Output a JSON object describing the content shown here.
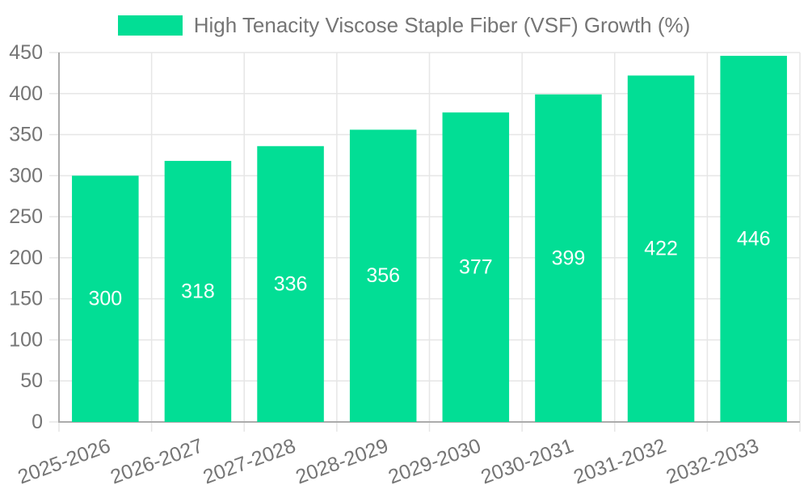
{
  "chart_data": {
    "type": "bar",
    "legend_label": "High Tenacity Viscose Staple Fiber (VSF) Growth (%)",
    "categories": [
      "2025-2026",
      "2026-2027",
      "2027-2028",
      "2028-2029",
      "2029-2030",
      "2030-2031",
      "2031-2032",
      "2032-2033"
    ],
    "values": [
      300,
      318,
      336,
      356,
      377,
      399,
      422,
      446
    ],
    "value_labels": [
      "300",
      "318",
      "336",
      "356",
      "377",
      "399",
      "422",
      "446"
    ],
    "ylabel": "",
    "xlabel": "",
    "ylim": [
      0,
      450
    ],
    "ytick_step": 50,
    "grid": true,
    "legend_position": "top",
    "x_label_rotation": -20,
    "colors": {
      "bar": "#02DE95",
      "grid": "#E6E6E6",
      "axis": "#ABABAB",
      "tick_text": "#757575",
      "value_label": "#FFFFFF",
      "background": "#FFFFFF"
    }
  }
}
